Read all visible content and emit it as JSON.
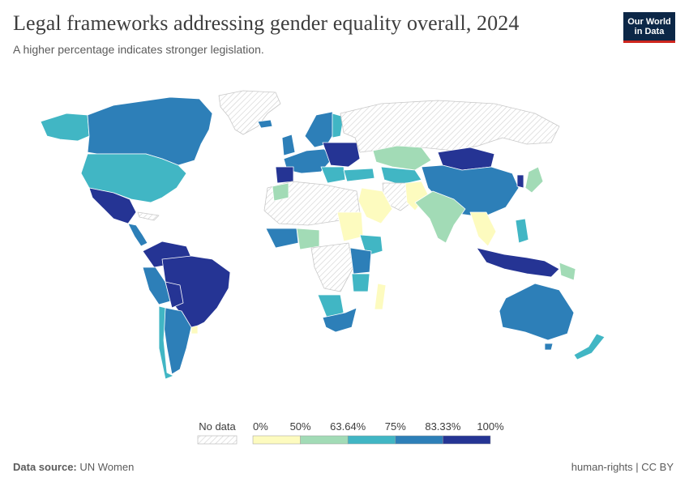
{
  "header": {
    "title": "Legal frameworks addressing gender equality overall, 2024",
    "subtitle": "A higher percentage indicates stronger legislation."
  },
  "logo": {
    "line1": "Our World",
    "line2": "in Data"
  },
  "colors": {
    "no_data": "#eeeeee",
    "bin_0": "#fdfbbf",
    "bin_50": "#a2dbb6",
    "bin_6364": "#41b6c4",
    "bin_75": "#2d7fb8",
    "bin_8333": "#253494",
    "border": "#ffffff"
  },
  "legend": {
    "no_data_label": "No data",
    "bins": [
      {
        "label": "0%",
        "color": "#fdfbbf"
      },
      {
        "label": "50%",
        "color": "#a2dbb6"
      },
      {
        "label": "63.64%",
        "color": "#41b6c4"
      },
      {
        "label": "75%",
        "color": "#2d7fb8"
      },
      {
        "label": "83.33%",
        "color": "#253494"
      }
    ],
    "end_label": "100%"
  },
  "footer": {
    "source_prefix": "Data source:",
    "source": "UN Women",
    "license": "human-rights | CC BY"
  }
}
